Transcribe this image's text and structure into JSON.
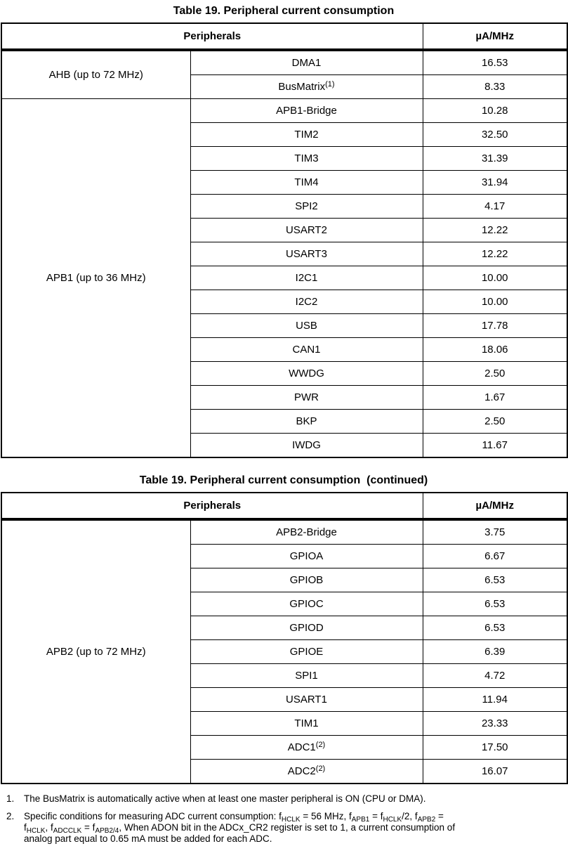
{
  "page": {
    "tables": [
      {
        "title": "Table 19. Peripheral current consumption",
        "header": {
          "peripherals": "Peripherals",
          "unit": "µA/MHz"
        },
        "groups": [
          {
            "name": "AHB (up to 72 MHz)",
            "rows": [
              {
                "name": "DMA1",
                "value": "16.53"
              },
              {
                "name": "BusMatrix",
                "sup": "(1)",
                "value": "8.33"
              }
            ]
          },
          {
            "name": "APB1 (up to 36 MHz)",
            "rows": [
              {
                "name": "APB1-Bridge",
                "value": "10.28"
              },
              {
                "name": "TIM2",
                "value": "32.50"
              },
              {
                "name": "TIM3",
                "value": "31.39"
              },
              {
                "name": "TIM4",
                "value": "31.94"
              },
              {
                "name": "SPI2",
                "value": "4.17"
              },
              {
                "name": "USART2",
                "value": "12.22"
              },
              {
                "name": "USART3",
                "value": "12.22"
              },
              {
                "name": "I2C1",
                "value": "10.00"
              },
              {
                "name": "I2C2",
                "value": "10.00"
              },
              {
                "name": "USB",
                "value": "17.78"
              },
              {
                "name": "CAN1",
                "value": "18.06"
              },
              {
                "name": "WWDG",
                "value": "2.50"
              },
              {
                "name": "PWR",
                "value": "1.67"
              },
              {
                "name": "BKP",
                "value": "2.50"
              },
              {
                "name": "IWDG",
                "value": "11.67"
              }
            ]
          }
        ]
      },
      {
        "title": "Table 19. Peripheral current consumption  (continued)",
        "header": {
          "peripherals": "Peripherals",
          "unit": "µA/MHz"
        },
        "groups": [
          {
            "name": "APB2 (up to 72 MHz)",
            "rows": [
              {
                "name": "APB2-Bridge",
                "value": "3.75"
              },
              {
                "name": "GPIOA",
                "value": "6.67"
              },
              {
                "name": "GPIOB",
                "value": "6.53"
              },
              {
                "name": "GPIOC",
                "value": "6.53"
              },
              {
                "name": "GPIOD",
                "value": "6.53"
              },
              {
                "name": "GPIOE",
                "value": "6.39"
              },
              {
                "name": "SPI1",
                "value": "4.72"
              },
              {
                "name": "USART1",
                "value": "11.94"
              },
              {
                "name": "TIM1",
                "value": "23.33"
              },
              {
                "name": "ADC1",
                "sup": "(2)",
                "value": "17.50"
              },
              {
                "name": "ADC2",
                "sup": "(2)",
                "value": "16.07"
              }
            ]
          }
        ]
      }
    ],
    "footnotes": [
      {
        "num": "1.",
        "segments": [
          {
            "t": "The BusMatrix is automatically active when at least one master peripheral is ON (CPU or DMA)."
          }
        ]
      },
      {
        "num": "2.",
        "segments": [
          {
            "t": "Specific conditions for measuring ADC current consumption: f"
          },
          {
            "t": "HCLK",
            "sub": true
          },
          {
            "t": " = 56 MHz, f"
          },
          {
            "t": "APB1",
            "sub": true
          },
          {
            "t": " = f"
          },
          {
            "t": "HCLK",
            "sub": true
          },
          {
            "t": "/2, f"
          },
          {
            "t": "APB2",
            "sub": true
          },
          {
            "t": " ="
          },
          {
            "br": true
          },
          {
            "t": "f"
          },
          {
            "t": "HCLK",
            "sub": true
          },
          {
            "t": ", f"
          },
          {
            "t": "ADCCLK",
            "sub": true
          },
          {
            "t": " = f"
          },
          {
            "t": "APB2/4",
            "sub": true
          },
          {
            "t": ", When ADON bit in the ADCx_CR2 register is set to 1, a current consumption of"
          },
          {
            "br": true
          },
          {
            "t": "analog part equal to 0.65 mA must be added for each ADC."
          }
        ]
      }
    ]
  }
}
